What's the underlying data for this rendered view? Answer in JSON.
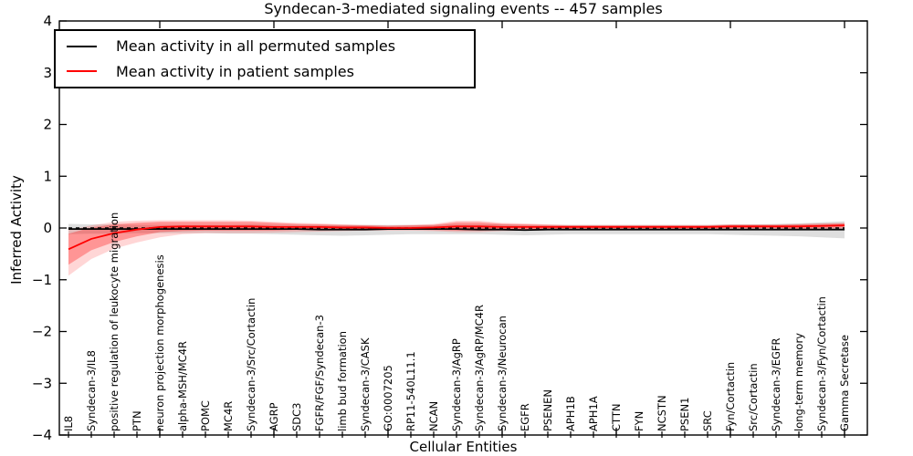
{
  "chart_data": {
    "type": "line",
    "title": "Syndecan-3-mediated signaling events -- 457 samples",
    "xlabel": "Cellular Entities",
    "ylabel": "Inferred Activity",
    "ylim": [
      -4,
      4
    ],
    "ytick_labels": [
      "−4",
      "−3",
      "−2",
      "−1",
      "0",
      "1",
      "2",
      "3",
      "4"
    ],
    "ytick_values": [
      -4,
      -3,
      -2,
      -1,
      0,
      1,
      2,
      3,
      4
    ],
    "legend_position": "upper left",
    "grid": false,
    "zero_reference_line": {
      "value": 0,
      "style": "dashed",
      "color": "#000000"
    },
    "categories": [
      "IL8",
      "Syndecan-3/IL8",
      "positive regulation of leukocyte migration",
      "PTN",
      "neuron projection morphogenesis",
      "alpha-MSH/MC4R",
      "POMC",
      "MC4R",
      "Syndecan-3/Src/Cortactin",
      "AGRP",
      "SDC3",
      "FGFR/FGF/Syndecan-3",
      "limb bud formation",
      "Syndecan-3/CASK",
      "GO:0007205",
      "RP11-540L11.1",
      "NCAN",
      "Syndecan-3/AgRP",
      "Syndecan-3/AgRP/MC4R",
      "Syndecan-3/Neurocan",
      "EGFR",
      "PSENEN",
      "APH1B",
      "APH1A",
      "CTTN",
      "FYN",
      "NCSTN",
      "PSEN1",
      "SRC",
      "Fyn/Cortactin",
      "Src/Cortactin",
      "Syndecan-3/EGFR",
      "long-term memory",
      "Syndecan-3/Fyn/Cortactin",
      "Gamma Secretase"
    ],
    "major_tick_category_indices": [
      4,
      9,
      14,
      19,
      24,
      29,
      34
    ],
    "series": [
      {
        "name": "Mean activity in all permuted samples",
        "color": "#000000",
        "band_color": "rgba(0,0,0,0.13)",
        "values": [
          -0.02,
          -0.02,
          -0.02,
          -0.02,
          -0.02,
          -0.02,
          -0.02,
          -0.02,
          -0.02,
          -0.02,
          -0.02,
          -0.03,
          -0.03,
          -0.03,
          -0.02,
          -0.02,
          -0.02,
          -0.02,
          -0.03,
          -0.03,
          -0.04,
          -0.03,
          -0.03,
          -0.03,
          -0.03,
          -0.03,
          -0.03,
          -0.03,
          -0.03,
          -0.03,
          -0.03,
          -0.03,
          -0.03,
          -0.03,
          -0.03
        ],
        "band_upper": [
          0.08,
          0.07,
          0.07,
          0.06,
          0.06,
          0.06,
          0.06,
          0.06,
          0.07,
          0.06,
          0.06,
          0.06,
          0.06,
          0.06,
          0.06,
          0.06,
          0.06,
          0.07,
          0.07,
          0.07,
          0.06,
          0.06,
          0.06,
          0.06,
          0.06,
          0.06,
          0.06,
          0.06,
          0.06,
          0.07,
          0.07,
          0.08,
          0.09,
          0.11,
          0.13
        ],
        "band_lower": [
          -0.12,
          -0.11,
          -0.11,
          -0.1,
          -0.1,
          -0.1,
          -0.1,
          -0.11,
          -0.11,
          -0.12,
          -0.13,
          -0.14,
          -0.15,
          -0.14,
          -0.13,
          -0.12,
          -0.12,
          -0.12,
          -0.12,
          -0.13,
          -0.14,
          -0.13,
          -0.12,
          -0.12,
          -0.12,
          -0.12,
          -0.12,
          -0.12,
          -0.12,
          -0.13,
          -0.14,
          -0.15,
          -0.16,
          -0.18,
          -0.2
        ]
      },
      {
        "name": "Mean activity in patient samples",
        "color": "#ff0000",
        "band_color_inner": "rgba(255,0,0,0.30)",
        "band_color_outer": "rgba(255,0,0,0.16)",
        "values": [
          -0.41,
          -0.21,
          -0.1,
          -0.03,
          0.02,
          0.03,
          0.03,
          0.03,
          0.03,
          0.02,
          0.02,
          0.02,
          0.01,
          0.01,
          0.0,
          0.0,
          0.01,
          0.03,
          0.03,
          0.02,
          0.02,
          0.02,
          0.02,
          0.02,
          0.02,
          0.02,
          0.02,
          0.02,
          0.02,
          0.03,
          0.03,
          0.03,
          0.03,
          0.04,
          0.05
        ],
        "band_inner_upper": [
          -0.11,
          0.01,
          0.07,
          0.1,
          0.12,
          0.12,
          0.12,
          0.12,
          0.12,
          0.1,
          0.08,
          0.07,
          0.06,
          0.05,
          0.04,
          0.05,
          0.06,
          0.11,
          0.11,
          0.08,
          0.07,
          0.06,
          0.05,
          0.05,
          0.05,
          0.05,
          0.05,
          0.05,
          0.05,
          0.06,
          0.06,
          0.06,
          0.07,
          0.08,
          0.09
        ],
        "band_inner_lower": [
          -0.71,
          -0.43,
          -0.27,
          -0.16,
          -0.08,
          -0.06,
          -0.05,
          -0.05,
          -0.05,
          -0.05,
          -0.04,
          -0.04,
          -0.03,
          -0.03,
          -0.03,
          -0.03,
          -0.04,
          -0.05,
          -0.05,
          -0.04,
          -0.03,
          -0.02,
          -0.01,
          -0.01,
          -0.01,
          -0.01,
          -0.01,
          -0.01,
          -0.01,
          0.0,
          0.0,
          0.0,
          -0.01,
          0.0,
          0.01
        ],
        "band_outer_upper": [
          -0.04,
          0.05,
          0.12,
          0.14,
          0.15,
          0.15,
          0.15,
          0.15,
          0.14,
          0.12,
          0.1,
          0.09,
          0.07,
          0.06,
          0.05,
          0.06,
          0.08,
          0.14,
          0.14,
          0.1,
          0.09,
          0.07,
          0.06,
          0.06,
          0.06,
          0.06,
          0.06,
          0.06,
          0.06,
          0.07,
          0.07,
          0.07,
          0.08,
          0.09,
          0.1
        ],
        "band_outer_lower": [
          -0.92,
          -0.6,
          -0.4,
          -0.28,
          -0.18,
          -0.12,
          -0.1,
          -0.1,
          -0.1,
          -0.09,
          -0.08,
          -0.07,
          -0.06,
          -0.05,
          -0.05,
          -0.05,
          -0.06,
          -0.08,
          -0.08,
          -0.06,
          -0.05,
          -0.04,
          -0.03,
          -0.03,
          -0.03,
          -0.03,
          -0.03,
          -0.03,
          -0.03,
          -0.02,
          -0.02,
          -0.02,
          -0.03,
          -0.02,
          -0.01
        ]
      }
    ]
  }
}
